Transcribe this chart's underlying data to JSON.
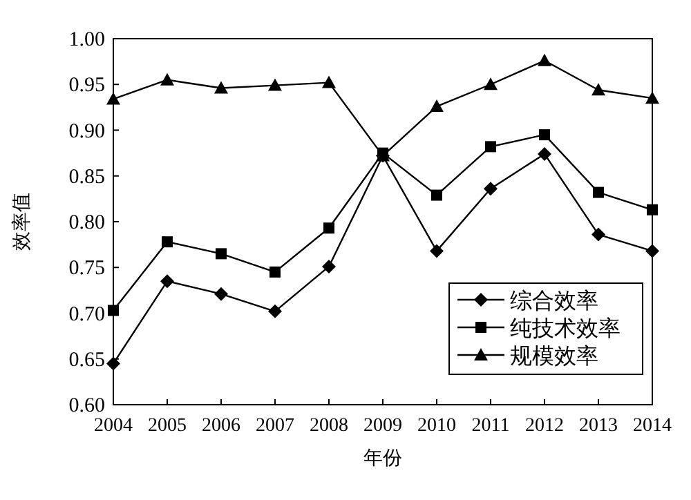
{
  "chart_data": {
    "type": "line",
    "xlabel": "年份",
    "ylabel": "效率值",
    "x": [
      2004,
      2005,
      2006,
      2007,
      2008,
      2009,
      2010,
      2011,
      2012,
      2013,
      2014
    ],
    "xlim": [
      2004,
      2014
    ],
    "xticks": [
      2004,
      2005,
      2006,
      2007,
      2008,
      2009,
      2010,
      2011,
      2012,
      2013,
      2014
    ],
    "ylim": [
      0.6,
      1.0
    ],
    "yticks": [
      {
        "value": 0.6,
        "label": "0.60"
      },
      {
        "value": 0.65,
        "label": "0.65"
      },
      {
        "value": 0.7,
        "label": "0.70"
      },
      {
        "value": 0.75,
        "label": "0.75"
      },
      {
        "value": 0.8,
        "label": "0.80"
      },
      {
        "value": 0.85,
        "label": "0.85"
      },
      {
        "value": 0.9,
        "label": "0.90"
      },
      {
        "value": 0.95,
        "label": "0.95"
      },
      {
        "value": 1.0,
        "label": "1.00"
      }
    ],
    "grid": false,
    "legend": "bottom right",
    "line_style": "solid",
    "series": [
      {
        "name": "综合效率",
        "color": "#000000",
        "marker": "diamond",
        "values": [
          0.645,
          0.735,
          0.721,
          0.702,
          0.751,
          0.872,
          0.768,
          0.836,
          0.874,
          0.786,
          0.768
        ]
      },
      {
        "name": "纯技术效率",
        "color": "#000000",
        "marker": "square",
        "values": [
          0.703,
          0.778,
          0.765,
          0.745,
          0.793,
          0.875,
          0.829,
          0.882,
          0.895,
          0.832,
          0.813
        ]
      },
      {
        "name": "规模效率",
        "color": "#000000",
        "marker": "triangle",
        "values": [
          0.934,
          0.955,
          0.946,
          0.949,
          0.952,
          0.872,
          0.926,
          0.95,
          0.976,
          0.944,
          0.935
        ]
      }
    ]
  }
}
